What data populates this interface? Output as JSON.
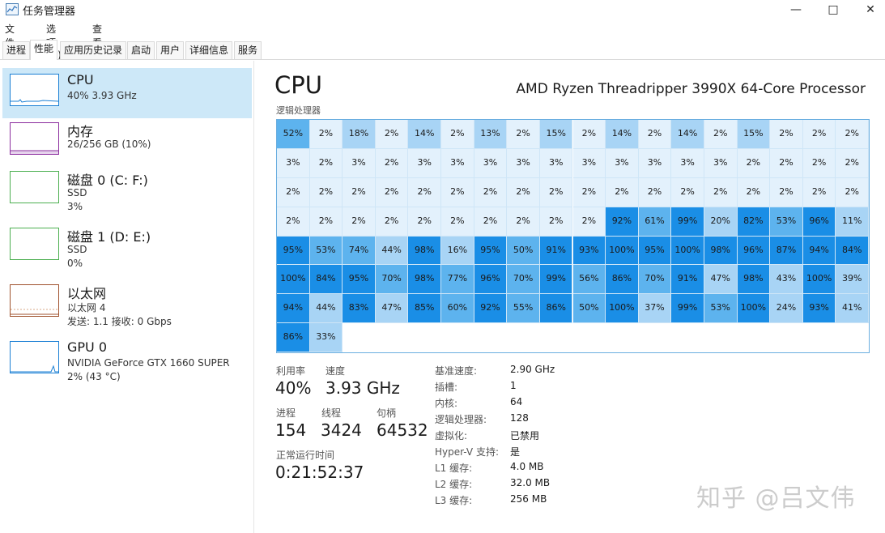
{
  "window": {
    "title": "任务管理器",
    "min_icon": "minimize-icon",
    "max_icon": "maximize-icon",
    "close_icon": "close-icon"
  },
  "menu": [
    "文件(F)",
    "选项(O)",
    "查看(V)"
  ],
  "tabs": [
    "进程",
    "性能",
    "应用历史记录",
    "启动",
    "用户",
    "详细信息",
    "服务"
  ],
  "active_tab": "性能",
  "sidebar": [
    {
      "title": "CPU",
      "lines": [
        "40% 3.93 GHz"
      ],
      "color": "#1a7fd4"
    },
    {
      "title": "内存",
      "lines": [
        "26/256 GB (10%)"
      ],
      "color": "#8b2c9e"
    },
    {
      "title": "磁盘 0 (C: F:)",
      "lines": [
        "SSD",
        "3%"
      ],
      "color": "#4caf50"
    },
    {
      "title": "磁盘 1 (D: E:)",
      "lines": [
        "SSD",
        "0%"
      ],
      "color": "#4caf50"
    },
    {
      "title": "以太网",
      "lines": [
        "以太网 4",
        "发送: 1.1 接收: 0 Gbps"
      ],
      "color": "#a0522d"
    },
    {
      "title": "GPU 0",
      "lines": [
        "NVIDIA GeForce GTX 1660 SUPER",
        "2% (43 °C)"
      ],
      "color": "#1a7fd4"
    }
  ],
  "main": {
    "title": "CPU",
    "cpu_name": "AMD Ryzen Threadripper 3990X 64-Core Processor",
    "grid_label": "逻辑处理器",
    "cores": [
      52,
      2,
      18,
      2,
      14,
      2,
      13,
      2,
      15,
      2,
      14,
      2,
      14,
      2,
      15,
      2,
      2,
      2,
      3,
      2,
      3,
      2,
      3,
      3,
      3,
      3,
      3,
      3,
      3,
      3,
      3,
      3,
      2,
      2,
      2,
      2,
      2,
      2,
      2,
      2,
      2,
      2,
      2,
      2,
      2,
      2,
      2,
      2,
      2,
      2,
      2,
      2,
      2,
      2,
      2,
      2,
      2,
      2,
      2,
      2,
      2,
      2,
      2,
      2,
      92,
      61,
      99,
      20,
      82,
      53,
      96,
      11,
      95,
      53,
      74,
      44,
      98,
      16,
      95,
      50,
      91,
      93,
      100,
      95,
      100,
      98,
      96,
      87,
      94,
      84,
      100,
      84,
      95,
      70,
      98,
      77,
      96,
      70,
      99,
      56,
      86,
      70,
      91,
      47,
      98,
      43,
      100,
      39,
      94,
      44,
      83,
      47,
      85,
      60,
      92,
      55,
      86,
      50,
      100,
      37,
      99,
      53,
      100,
      24,
      93,
      41,
      86,
      33
    ],
    "colors": {
      "high": "#1a8ee6",
      "mid": "#5db3ee",
      "lowmid": "#a8d4f5",
      "low": "#e3f1fc"
    },
    "stats": {
      "utilization_label": "利用率",
      "utilization": "40%",
      "speed_label": "速度",
      "speed": "3.93 GHz",
      "processes_label": "进程",
      "processes": "154",
      "threads_label": "线程",
      "threads": "3424",
      "handles_label": "句柄",
      "handles": "64532",
      "uptime_label": "正常运行时间",
      "uptime": "0:21:52:37"
    },
    "info": [
      {
        "key": "基准速度:",
        "value": "2.90 GHz"
      },
      {
        "key": "插槽:",
        "value": "1"
      },
      {
        "key": "内核:",
        "value": "64"
      },
      {
        "key": "逻辑处理器:",
        "value": "128"
      },
      {
        "key": "虚拟化:",
        "value": "已禁用"
      },
      {
        "key": "Hyper-V 支持:",
        "value": "是"
      },
      {
        "key": "L1 缓存:",
        "value": "4.0 MB"
      },
      {
        "key": "L2 缓存:",
        "value": "32.0 MB"
      },
      {
        "key": "L3 缓存:",
        "value": "256 MB"
      }
    ]
  },
  "watermark": "知乎 @吕文伟"
}
